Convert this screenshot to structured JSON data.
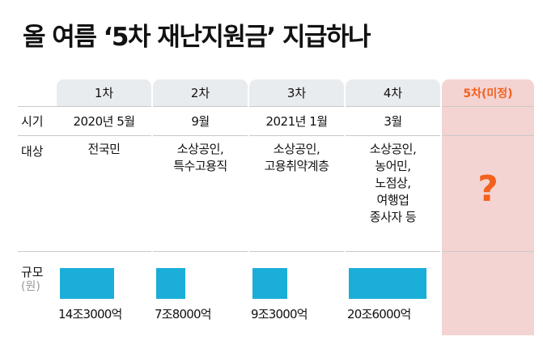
{
  "title": "올 여름 ‘5차 재난지원금’ 지급하나",
  "row_labels": {
    "period": "시기",
    "target": "대상",
    "scale": "규모",
    "scale_unit": "(원)"
  },
  "rounds": [
    {
      "label": "1차",
      "period": "2020년 5월",
      "target": "전국민",
      "amount": "14조3000억",
      "amount_value": 14.3
    },
    {
      "label": "2차",
      "period": "9월",
      "target": "소상공인,\n특수고용직",
      "amount": "7조8000억",
      "amount_value": 7.8
    },
    {
      "label": "3차",
      "period": "2021년 1월",
      "target": "소상공인,\n고용취약계층",
      "amount": "9조3000억",
      "amount_value": 9.3
    },
    {
      "label": "4차",
      "period": "3월",
      "target": "소상공인,\n농어민,\n노점상,\n여행업\n종사자 등",
      "amount": "20조6000억",
      "amount_value": 20.6
    }
  ],
  "future_round": {
    "label": "5차(미정)",
    "mark": "?"
  },
  "colors": {
    "bar": "#1aaed8",
    "header_bg": "#e9ecef",
    "future_bg": "#f4d3d3",
    "accent": "#f2611d"
  }
}
